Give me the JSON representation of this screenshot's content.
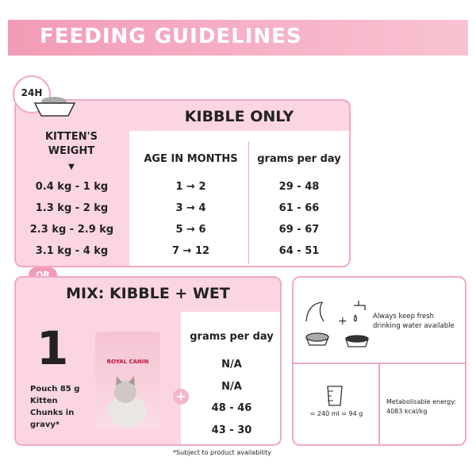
{
  "header": {
    "title": "FEEDING GUIDELINES"
  },
  "badge": "24H",
  "kibble": {
    "title": "KIBBLE ONLY",
    "weight_header": "KITTEN'S WEIGHT",
    "age_header": "AGE IN MONTHS",
    "grams_header": "grams per day",
    "rows": [
      [
        "0.4 kg - 1 kg",
        "1 → 2",
        "29 - 48"
      ],
      [
        "1.3 kg - 2 kg",
        "3 → 4",
        "61 - 66"
      ],
      [
        "2.3 kg - 2.9 kg",
        "5 → 6",
        "69 - 67"
      ],
      [
        "3.1 kg - 4 kg",
        "7 → 12",
        "64 - 51"
      ]
    ]
  },
  "or": "OR",
  "mix": {
    "title": "MIX: KIBBLE + WET",
    "number": "1",
    "pouch": "Pouch 85 g Kitten Chunks in gravy*",
    "brand": "ROYAL CANIN",
    "grams_header": "grams per day",
    "values": [
      "N/A",
      "N/A",
      "48 - 46",
      "43 - 30"
    ]
  },
  "info": {
    "water": "Always keep fresh drinking water available",
    "measure": "= 240 ml = 94 g",
    "energy": "Metabolisable energy: 4083 kcal/kg"
  },
  "footnote": "*Subject to product availability"
}
